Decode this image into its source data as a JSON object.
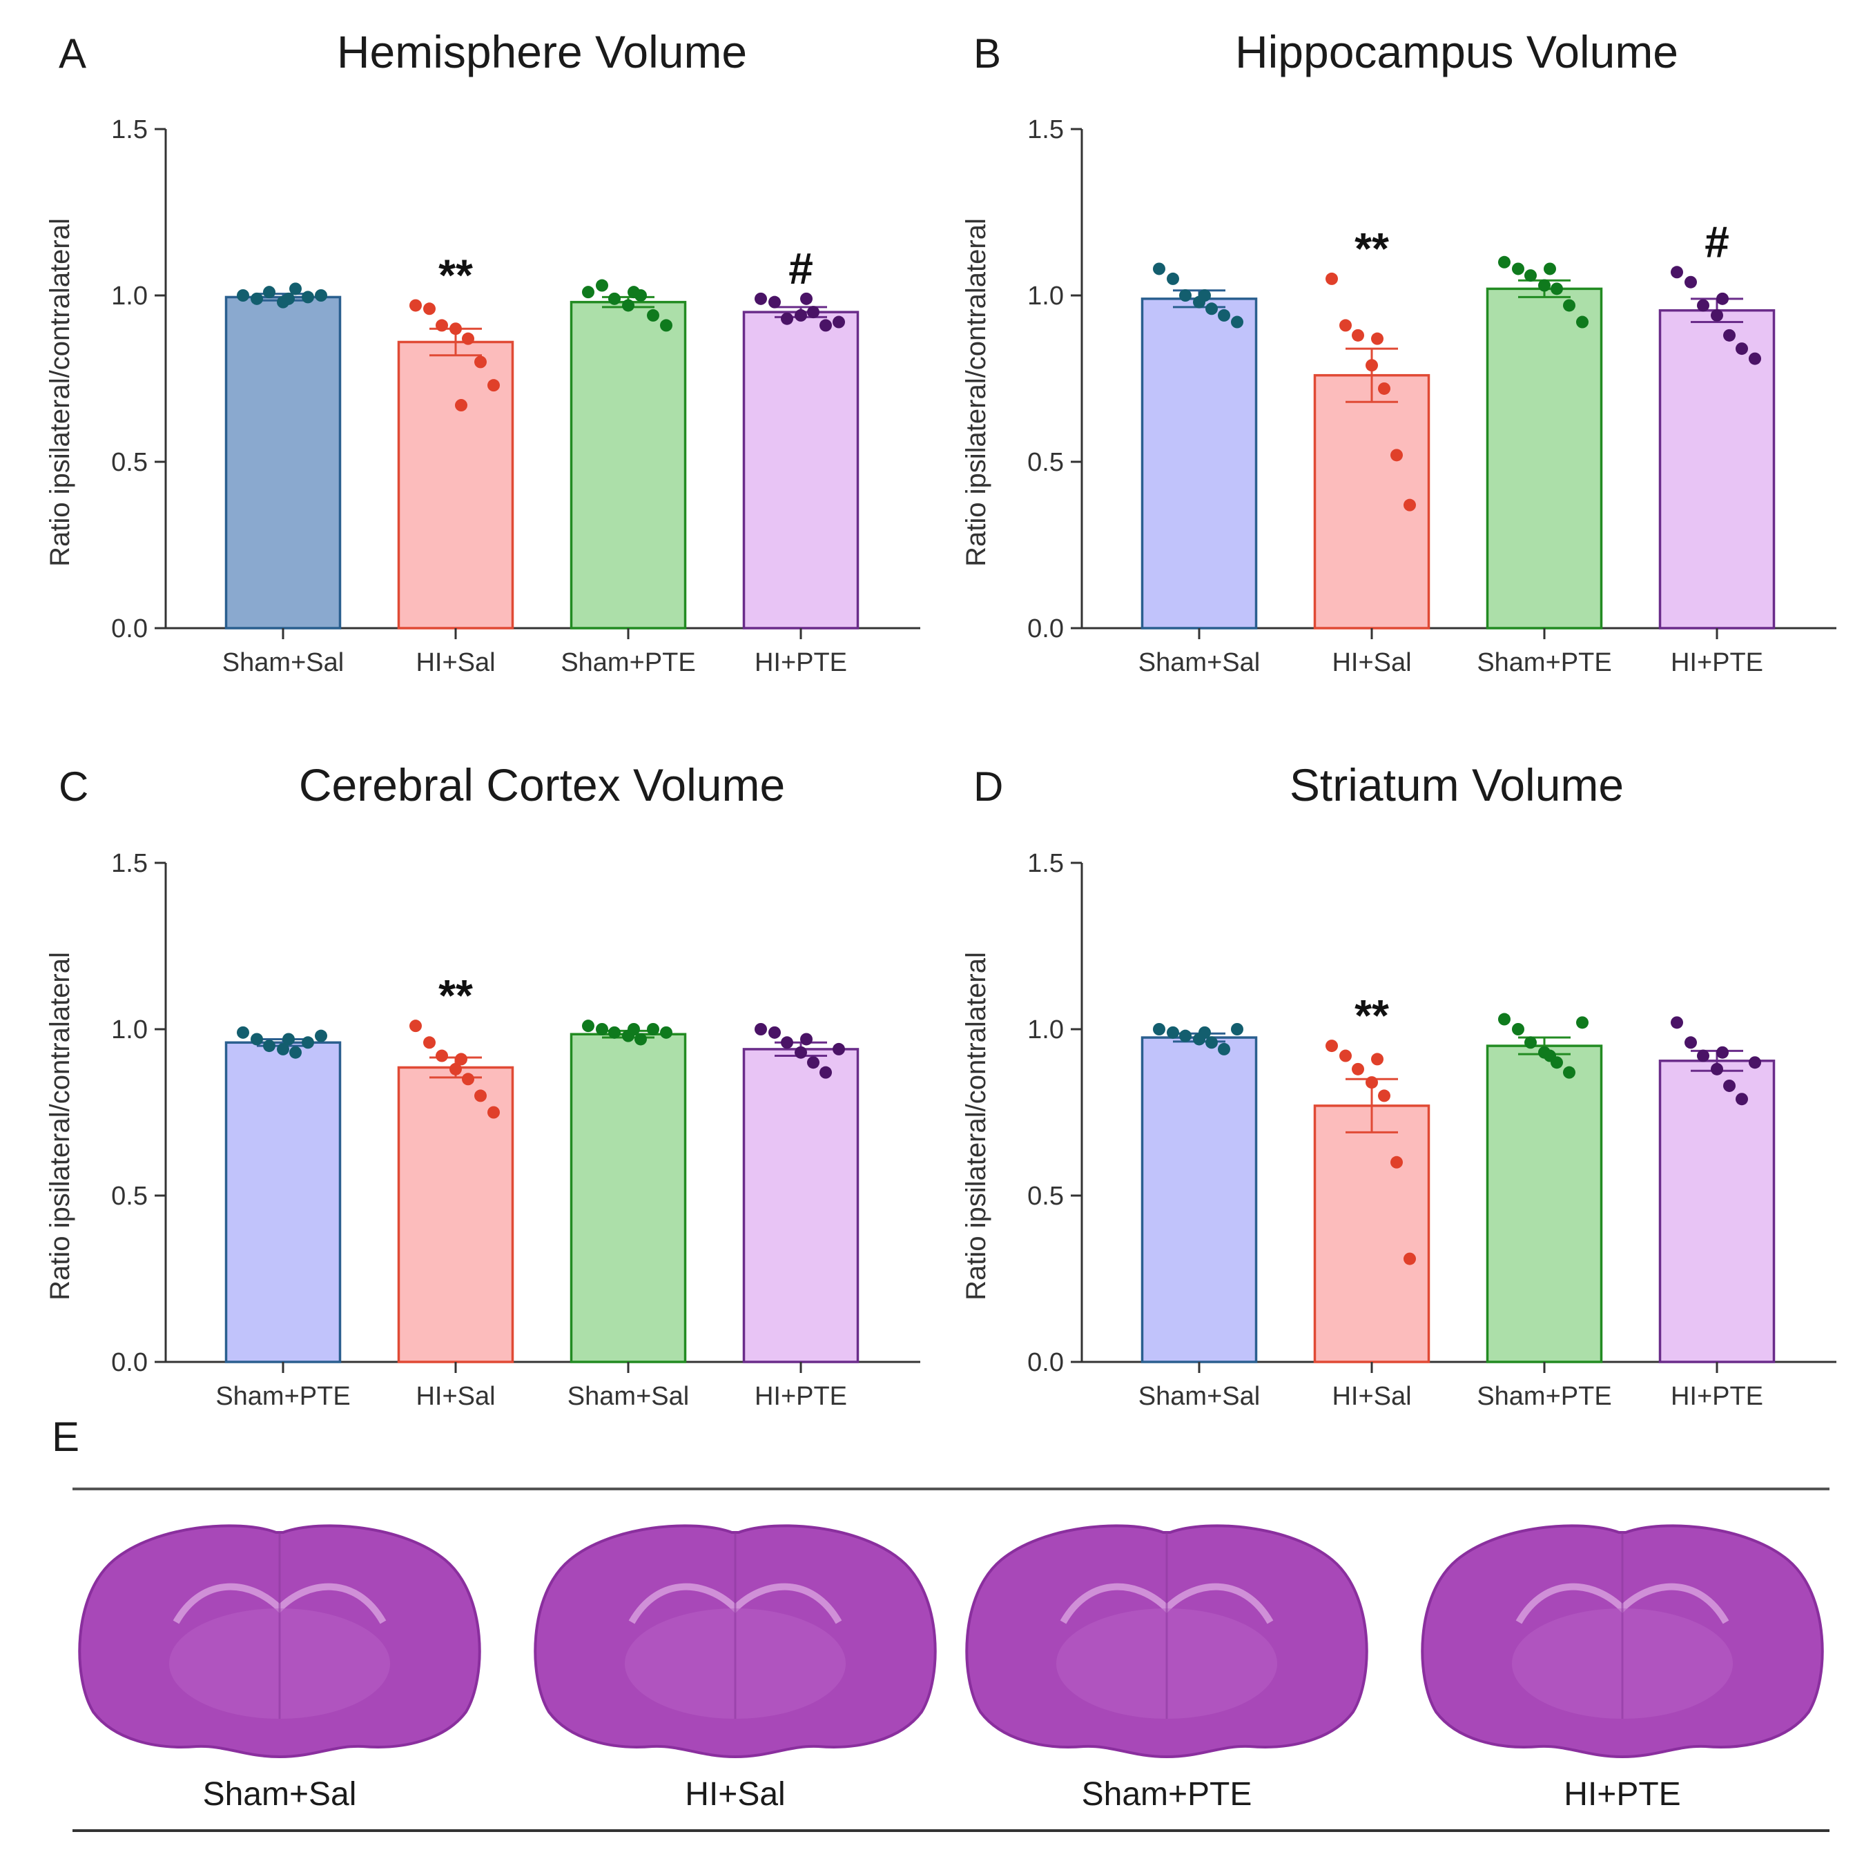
{
  "chart_data": [
    {
      "panel": "A",
      "type": "bar",
      "title": "Hemisphere Volume",
      "ylabel": "Ratio ipsilateral/contralateral",
      "ylim": [
        0,
        1.5
      ],
      "yticks": [
        "0.0",
        "0.5",
        "1.0",
        "1.5"
      ],
      "categories": [
        "Sham+Sal",
        "HI+Sal",
        "Sham+PTE",
        "HI+PTE"
      ],
      "values": [
        0.995,
        0.86,
        0.98,
        0.95
      ],
      "errors": [
        0.01,
        0.04,
        0.015,
        0.015
      ],
      "points": [
        [
          1.0,
          0.99,
          1.01,
          0.98,
          1.02,
          0.995,
          1.0,
          0.99
        ],
        [
          0.97,
          0.96,
          0.91,
          0.9,
          0.87,
          0.8,
          0.73,
          0.67
        ],
        [
          1.01,
          1.03,
          0.99,
          0.97,
          1.0,
          0.94,
          0.91,
          1.01
        ],
        [
          0.99,
          0.98,
          0.93,
          0.94,
          0.95,
          0.91,
          0.92,
          0.99
        ]
      ],
      "annotations": [
        "",
        "**",
        "",
        "#"
      ],
      "fills": [
        "#8aa9cf",
        "#fcbcbc",
        "#acdfa9",
        "#e8c4f5"
      ],
      "strokes": [
        "#2a5f8f",
        "#e04a35",
        "#228b22",
        "#6a2c8a"
      ],
      "dots": [
        "#135e6e",
        "#e0402a",
        "#0f7a1d",
        "#4a1366"
      ]
    },
    {
      "panel": "B",
      "type": "bar",
      "title": "Hippocampus Volume",
      "ylabel": "Ratio ipsilateral/contralateral",
      "ylim": [
        0,
        1.5
      ],
      "yticks": [
        "0.0",
        "0.5",
        "1.0",
        "1.5"
      ],
      "categories": [
        "Sham+Sal",
        "HI+Sal",
        "Sham+PTE",
        "HI+PTE"
      ],
      "values": [
        0.99,
        0.76,
        1.02,
        0.955
      ],
      "errors": [
        0.025,
        0.08,
        0.025,
        0.035
      ],
      "points": [
        [
          1.08,
          1.05,
          1.0,
          0.98,
          0.96,
          0.94,
          0.92,
          1.0
        ],
        [
          1.05,
          0.91,
          0.88,
          0.79,
          0.72,
          0.52,
          0.37,
          0.87
        ],
        [
          1.1,
          1.08,
          1.06,
          1.03,
          1.02,
          0.97,
          0.92,
          1.08
        ],
        [
          1.07,
          1.04,
          0.97,
          0.94,
          0.88,
          0.84,
          0.81,
          0.99
        ]
      ],
      "annotations": [
        "",
        "**",
        "",
        "#"
      ],
      "fills": [
        "#c1c3fb",
        "#fcbcbc",
        "#acdfa9",
        "#e8c4f5"
      ],
      "strokes": [
        "#2a5f8f",
        "#e04a35",
        "#228b22",
        "#6a2c8a"
      ],
      "dots": [
        "#135e6e",
        "#e0402a",
        "#0f7a1d",
        "#4a1366"
      ]
    },
    {
      "panel": "C",
      "type": "bar",
      "title": "Cerebral Cortex Volume",
      "ylabel": "Ratio ipsilateral/contralateral",
      "ylim": [
        0,
        1.5
      ],
      "yticks": [
        "0.0",
        "0.5",
        "1.0",
        "1.5"
      ],
      "categories": [
        "Sham+PTE",
        "HI+Sal",
        "Sham+Sal",
        "HI+PTE"
      ],
      "values": [
        0.96,
        0.885,
        0.985,
        0.94
      ],
      "errors": [
        0.01,
        0.03,
        0.01,
        0.02
      ],
      "points": [
        [
          0.99,
          0.97,
          0.95,
          0.94,
          0.93,
          0.96,
          0.98,
          0.97
        ],
        [
          1.01,
          0.96,
          0.92,
          0.88,
          0.85,
          0.8,
          0.75,
          0.91
        ],
        [
          1.01,
          1.0,
          0.99,
          0.98,
          0.97,
          1.0,
          0.99,
          1.0
        ],
        [
          1.0,
          0.99,
          0.96,
          0.93,
          0.9,
          0.87,
          0.94,
          0.97
        ]
      ],
      "annotations": [
        "",
        "**",
        "",
        ""
      ],
      "fills": [
        "#c1c3fb",
        "#fcbcbc",
        "#acdfa9",
        "#e8c4f5"
      ],
      "strokes": [
        "#2a5f8f",
        "#e04a35",
        "#228b22",
        "#6a2c8a"
      ],
      "dots": [
        "#135e6e",
        "#e0402a",
        "#0f7a1d",
        "#4a1366"
      ]
    },
    {
      "panel": "D",
      "type": "bar",
      "title": "Striatum Volume",
      "ylabel": "Ratio ipsilateral/contralateral",
      "ylim": [
        0,
        1.5
      ],
      "yticks": [
        "0.0",
        "0.5",
        "1.0",
        "1.5"
      ],
      "categories": [
        "Sham+Sal",
        "HI+Sal",
        "Sham+PTE",
        "HI+PTE"
      ],
      "values": [
        0.975,
        0.77,
        0.95,
        0.905
      ],
      "errors": [
        0.012,
        0.08,
        0.025,
        0.03
      ],
      "points": [
        [
          1.0,
          0.99,
          0.98,
          0.97,
          0.96,
          0.94,
          1.0,
          0.99
        ],
        [
          0.95,
          0.92,
          0.88,
          0.84,
          0.8,
          0.6,
          0.31,
          0.91
        ],
        [
          1.03,
          1.0,
          0.96,
          0.93,
          0.9,
          0.87,
          1.02,
          0.92
        ],
        [
          1.02,
          0.96,
          0.92,
          0.88,
          0.83,
          0.79,
          0.9,
          0.93
        ]
      ],
      "annotations": [
        "",
        "**",
        "",
        ""
      ],
      "fills": [
        "#c1c3fb",
        "#fcbcbc",
        "#acdfa9",
        "#e8c4f5"
      ],
      "strokes": [
        "#2a5f8f",
        "#e04a35",
        "#228b22",
        "#6a2c8a"
      ],
      "dots": [
        "#135e6e",
        "#e0402a",
        "#0f7a1d",
        "#4a1366"
      ]
    }
  ],
  "panel_e": {
    "letter": "E",
    "labels": [
      "Sham+Sal",
      "HI+Sal",
      "Sham+PTE",
      "HI+PTE"
    ],
    "tissue_color": "#a848b8",
    "tissue_edge": "#8a2f9e"
  }
}
